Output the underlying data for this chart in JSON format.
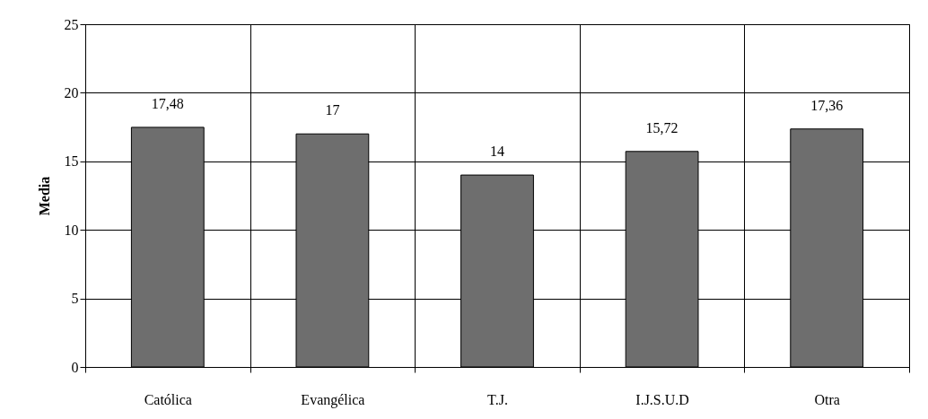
{
  "chart_data": {
    "type": "bar",
    "ylabel": "Media",
    "categories": [
      "Católica",
      "Evangélica",
      "T.J.",
      "I.J.S.U.D",
      "Otra"
    ],
    "values": [
      17.48,
      17,
      14,
      15.72,
      17.36
    ],
    "value_labels": [
      "17,48",
      "17",
      "14",
      "15,72",
      "17,36"
    ],
    "color": "#6e6e6e",
    "ylim": [
      0,
      25
    ],
    "yticks": [
      0,
      5,
      10,
      15,
      20,
      25
    ],
    "grid": true
  }
}
